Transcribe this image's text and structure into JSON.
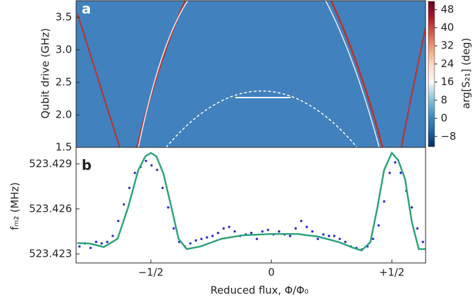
{
  "chart_data": [
    {
      "type": "heatmap",
      "label": "a",
      "ylabel": "Qubit drive (GHz)",
      "color": "#4181bd",
      "xlim": [
        -0.81,
        0.64
      ],
      "ylim": [
        1.5,
        3.755
      ],
      "yticks": [
        1.5,
        {
          "value": 2,
          "label": "2.0"
        },
        2.5,
        {
          "value": 3,
          "label": "3.0"
        },
        3.5
      ],
      "colorbar": {
        "label": "arg[S₂₁] (deg)",
        "lim": [
          -12.5,
          51.6
        ],
        "ticks": [
          {
            "value": -8,
            "label": "−8"
          },
          0,
          8,
          16,
          24,
          32,
          40,
          48
        ],
        "colors": [
          "#053061",
          "#2166ac",
          "#4393c3",
          "#92c5de",
          "#f7f7f7",
          "#fddbc7",
          "#f4a582",
          "#d6604d",
          "#b2182b",
          "#67001f"
        ]
      }
    },
    {
      "type": "scatter",
      "label": "b",
      "ylabel": "fₘ₂ (MHz)",
      "xlabel": "Reduced flux, Φ/Φ₀",
      "xlim": [
        -0.81,
        0.64
      ],
      "ylim": [
        523.4224,
        523.4301
      ],
      "xticks": [
        {
          "value": -0.5,
          "label": "−1/2"
        },
        0,
        {
          "value": 0.5,
          "label": "+1/2"
        }
      ],
      "yticks": [
        523.423,
        523.426,
        523.429
      ],
      "series": [
        {
          "style": "points",
          "color": "#2b2bd0",
          "x": [
            -0.796,
            -0.773,
            -0.75,
            -0.727,
            -0.704,
            -0.681,
            -0.658,
            -0.635,
            -0.612,
            -0.589,
            -0.566,
            -0.543,
            -0.52,
            -0.497,
            -0.474,
            -0.451,
            -0.428,
            -0.405,
            -0.382,
            -0.359,
            -0.336,
            -0.313,
            -0.29,
            -0.267,
            -0.244,
            -0.221,
            -0.198,
            -0.175,
            -0.152,
            -0.129,
            -0.106,
            -0.083,
            -0.06,
            -0.037,
            -0.014,
            0.009,
            0.032,
            0.055,
            0.078,
            0.101,
            0.124,
            0.147,
            0.17,
            0.193,
            0.216,
            0.239,
            0.261,
            0.284,
            0.307,
            0.33,
            0.353,
            0.376,
            0.399,
            0.422,
            0.445,
            0.468,
            0.491,
            0.514,
            0.537,
            0.56,
            0.583,
            0.606,
            0.629
          ],
          "values": [
            523.4235,
            523.4237,
            523.4234,
            523.4238,
            523.4237,
            523.4238,
            523.4242,
            523.4252,
            523.4263,
            523.4274,
            523.4284,
            523.4288,
            523.4292,
            523.4289,
            523.4286,
            523.4274,
            523.4261,
            523.4247,
            523.4238,
            523.4235,
            523.4237,
            523.4239,
            523.424,
            523.4241,
            523.4242,
            523.4244,
            523.4247,
            523.4248,
            523.4245,
            523.4242,
            523.4243,
            523.4244,
            523.424,
            523.4245,
            523.4246,
            523.4243,
            523.4245,
            523.4243,
            523.4242,
            523.4247,
            523.4252,
            523.4248,
            523.4245,
            523.424,
            523.4243,
            523.4242,
            523.4242,
            523.424,
            523.4238,
            523.4235,
            523.4234,
            523.4233,
            523.4235,
            523.424,
            523.4249,
            523.4265,
            523.4284,
            523.4291,
            523.4284,
            523.4272,
            523.4261,
            523.4247,
            523.4238
          ]
        },
        {
          "style": "line",
          "color": "#2ca37a",
          "x": [
            -0.805,
            -0.753,
            -0.695,
            -0.638,
            -0.595,
            -0.552,
            -0.523,
            -0.5,
            -0.477,
            -0.448,
            -0.414,
            -0.385,
            -0.351,
            -0.293,
            -0.207,
            -0.121,
            0,
            0.109,
            0.195,
            0.282,
            0.339,
            0.374,
            0.411,
            0.44,
            0.468,
            0.5,
            0.526,
            0.555,
            0.583,
            0.612,
            0.641
          ],
          "values": [
            523.42373,
            523.42369,
            523.42346,
            523.42401,
            523.42607,
            523.42859,
            523.4295,
            523.42973,
            523.4295,
            523.42836,
            523.42607,
            523.42401,
            523.42332,
            523.4235,
            523.42401,
            523.42424,
            523.42433,
            523.42433,
            523.42415,
            523.42378,
            523.42341,
            523.42323,
            523.42378,
            523.42607,
            523.42859,
            523.42973,
            523.42927,
            523.42798,
            523.42515,
            523.42332,
            523.42332
          ]
        }
      ]
    }
  ]
}
